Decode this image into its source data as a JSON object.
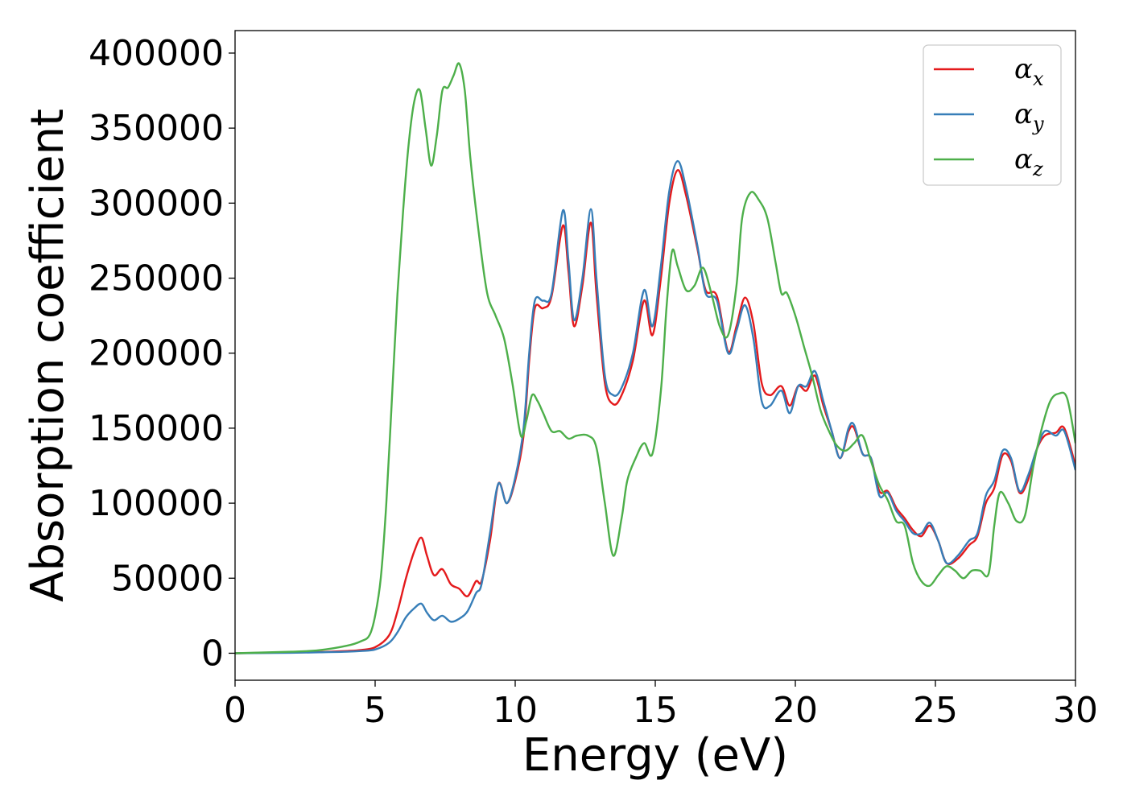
{
  "chart_data": {
    "type": "line",
    "xlabel": "Energy (eV)",
    "ylabel": "Absorption coefficient",
    "xlim": [
      0,
      30
    ],
    "ylim": [
      -18000,
      415000
    ],
    "xticks": [
      0,
      5,
      10,
      15,
      20,
      25,
      30
    ],
    "yticks": [
      0,
      50000,
      100000,
      150000,
      200000,
      250000,
      300000,
      350000,
      400000
    ],
    "grid": false,
    "legend": "top-right",
    "series": [
      {
        "name": "α",
        "subscript": "x",
        "color": "#e41a1c",
        "points": [
          [
            0,
            0
          ],
          [
            2,
            500
          ],
          [
            3,
            800
          ],
          [
            4,
            1500
          ],
          [
            4.5,
            2200
          ],
          [
            5,
            4000
          ],
          [
            5.5,
            12000
          ],
          [
            5.8,
            28000
          ],
          [
            6.1,
            50000
          ],
          [
            6.4,
            68000
          ],
          [
            6.65,
            77000
          ],
          [
            6.85,
            65000
          ],
          [
            7.1,
            52000
          ],
          [
            7.4,
            56000
          ],
          [
            7.7,
            46000
          ],
          [
            8.0,
            43000
          ],
          [
            8.3,
            38000
          ],
          [
            8.6,
            48000
          ],
          [
            8.8,
            48000
          ],
          [
            9.1,
            75000
          ],
          [
            9.4,
            113000
          ],
          [
            9.7,
            100000
          ],
          [
            10.0,
            115000
          ],
          [
            10.3,
            145000
          ],
          [
            10.5,
            195000
          ],
          [
            10.7,
            230000
          ],
          [
            11.0,
            230000
          ],
          [
            11.3,
            238000
          ],
          [
            11.7,
            285000
          ],
          [
            11.9,
            255000
          ],
          [
            12.1,
            218000
          ],
          [
            12.4,
            245000
          ],
          [
            12.7,
            287000
          ],
          [
            12.9,
            240000
          ],
          [
            13.2,
            180000
          ],
          [
            13.5,
            166000
          ],
          [
            13.8,
            172000
          ],
          [
            14.2,
            195000
          ],
          [
            14.6,
            235000
          ],
          [
            14.9,
            212000
          ],
          [
            15.2,
            250000
          ],
          [
            15.5,
            300000
          ],
          [
            15.8,
            322000
          ],
          [
            16.1,
            305000
          ],
          [
            16.5,
            270000
          ],
          [
            16.8,
            242000
          ],
          [
            17.2,
            238000
          ],
          [
            17.6,
            201000
          ],
          [
            17.9,
            218000
          ],
          [
            18.2,
            237000
          ],
          [
            18.5,
            220000
          ],
          [
            18.8,
            180000
          ],
          [
            19.1,
            172000
          ],
          [
            19.5,
            178000
          ],
          [
            19.8,
            165000
          ],
          [
            20.1,
            178000
          ],
          [
            20.4,
            175000
          ],
          [
            20.7,
            185000
          ],
          [
            21.0,
            165000
          ],
          [
            21.3,
            148000
          ],
          [
            21.6,
            130000
          ],
          [
            21.9,
            148000
          ],
          [
            22.1,
            150000
          ],
          [
            22.4,
            133000
          ],
          [
            22.7,
            130000
          ],
          [
            23.0,
            108000
          ],
          [
            23.3,
            108000
          ],
          [
            23.6,
            97000
          ],
          [
            23.9,
            90000
          ],
          [
            24.2,
            82000
          ],
          [
            24.5,
            78000
          ],
          [
            24.8,
            85000
          ],
          [
            25.1,
            75000
          ],
          [
            25.4,
            60000
          ],
          [
            25.8,
            63000
          ],
          [
            26.2,
            72000
          ],
          [
            26.5,
            78000
          ],
          [
            26.8,
            100000
          ],
          [
            27.1,
            110000
          ],
          [
            27.4,
            132000
          ],
          [
            27.7,
            128000
          ],
          [
            28.0,
            107000
          ],
          [
            28.3,
            115000
          ],
          [
            28.6,
            135000
          ],
          [
            28.9,
            145000
          ],
          [
            29.3,
            147000
          ],
          [
            29.6,
            150000
          ],
          [
            30,
            125000
          ]
        ]
      },
      {
        "name": "α",
        "subscript": "y",
        "color": "#377eb8",
        "points": [
          [
            0,
            0
          ],
          [
            2,
            300
          ],
          [
            3,
            600
          ],
          [
            4,
            1000
          ],
          [
            4.5,
            1500
          ],
          [
            5,
            2500
          ],
          [
            5.5,
            7000
          ],
          [
            5.8,
            14000
          ],
          [
            6.1,
            24000
          ],
          [
            6.4,
            30000
          ],
          [
            6.65,
            33000
          ],
          [
            6.85,
            27000
          ],
          [
            7.1,
            22000
          ],
          [
            7.4,
            25000
          ],
          [
            7.7,
            21000
          ],
          [
            8.0,
            23000
          ],
          [
            8.3,
            28000
          ],
          [
            8.6,
            40000
          ],
          [
            8.8,
            46000
          ],
          [
            9.1,
            80000
          ],
          [
            9.4,
            113000
          ],
          [
            9.7,
            100000
          ],
          [
            10.0,
            117000
          ],
          [
            10.3,
            150000
          ],
          [
            10.5,
            200000
          ],
          [
            10.7,
            235000
          ],
          [
            11.0,
            235000
          ],
          [
            11.3,
            240000
          ],
          [
            11.7,
            295000
          ],
          [
            11.9,
            262000
          ],
          [
            12.1,
            222000
          ],
          [
            12.4,
            250000
          ],
          [
            12.7,
            296000
          ],
          [
            12.9,
            250000
          ],
          [
            13.2,
            185000
          ],
          [
            13.5,
            172000
          ],
          [
            13.8,
            177000
          ],
          [
            14.2,
            200000
          ],
          [
            14.6,
            242000
          ],
          [
            14.9,
            218000
          ],
          [
            15.2,
            258000
          ],
          [
            15.5,
            308000
          ],
          [
            15.8,
            328000
          ],
          [
            16.1,
            310000
          ],
          [
            16.5,
            272000
          ],
          [
            16.8,
            240000
          ],
          [
            17.2,
            235000
          ],
          [
            17.6,
            200000
          ],
          [
            17.9,
            215000
          ],
          [
            18.2,
            232000
          ],
          [
            18.5,
            210000
          ],
          [
            18.8,
            168000
          ],
          [
            19.1,
            165000
          ],
          [
            19.5,
            175000
          ],
          [
            19.8,
            160000
          ],
          [
            20.1,
            178000
          ],
          [
            20.4,
            178000
          ],
          [
            20.7,
            188000
          ],
          [
            21.0,
            168000
          ],
          [
            21.3,
            148000
          ],
          [
            21.6,
            130000
          ],
          [
            21.9,
            150000
          ],
          [
            22.1,
            152000
          ],
          [
            22.4,
            133000
          ],
          [
            22.7,
            130000
          ],
          [
            23.0,
            105000
          ],
          [
            23.3,
            107000
          ],
          [
            23.6,
            95000
          ],
          [
            23.9,
            88000
          ],
          [
            24.2,
            80000
          ],
          [
            24.5,
            80000
          ],
          [
            24.8,
            87000
          ],
          [
            25.1,
            75000
          ],
          [
            25.4,
            60000
          ],
          [
            25.8,
            65000
          ],
          [
            26.2,
            75000
          ],
          [
            26.5,
            80000
          ],
          [
            26.8,
            105000
          ],
          [
            27.1,
            115000
          ],
          [
            27.4,
            135000
          ],
          [
            27.7,
            130000
          ],
          [
            28.0,
            108000
          ],
          [
            28.3,
            118000
          ],
          [
            28.6,
            135000
          ],
          [
            28.9,
            148000
          ],
          [
            29.3,
            145000
          ],
          [
            29.6,
            148000
          ],
          [
            30,
            122000
          ]
        ]
      },
      {
        "name": "α",
        "subscript": "z",
        "color": "#4daf4a",
        "points": [
          [
            0,
            0
          ],
          [
            2,
            1000
          ],
          [
            3,
            2000
          ],
          [
            4,
            5000
          ],
          [
            4.5,
            8000
          ],
          [
            4.8,
            12000
          ],
          [
            5.0,
            25000
          ],
          [
            5.2,
            50000
          ],
          [
            5.4,
            100000
          ],
          [
            5.6,
            170000
          ],
          [
            5.8,
            240000
          ],
          [
            6.0,
            295000
          ],
          [
            6.2,
            340000
          ],
          [
            6.4,
            368000
          ],
          [
            6.6,
            375000
          ],
          [
            6.8,
            350000
          ],
          [
            7.0,
            325000
          ],
          [
            7.2,
            345000
          ],
          [
            7.4,
            375000
          ],
          [
            7.6,
            377000
          ],
          [
            7.8,
            385000
          ],
          [
            8.0,
            393000
          ],
          [
            8.2,
            375000
          ],
          [
            8.4,
            330000
          ],
          [
            8.7,
            280000
          ],
          [
            9.0,
            240000
          ],
          [
            9.3,
            225000
          ],
          [
            9.6,
            210000
          ],
          [
            9.9,
            180000
          ],
          [
            10.2,
            145000
          ],
          [
            10.4,
            155000
          ],
          [
            10.6,
            172000
          ],
          [
            10.8,
            168000
          ],
          [
            11.0,
            160000
          ],
          [
            11.3,
            148000
          ],
          [
            11.6,
            148000
          ],
          [
            11.9,
            143000
          ],
          [
            12.2,
            145000
          ],
          [
            12.6,
            145000
          ],
          [
            12.9,
            137000
          ],
          [
            13.2,
            100000
          ],
          [
            13.5,
            65000
          ],
          [
            13.8,
            90000
          ],
          [
            14.0,
            115000
          ],
          [
            14.3,
            130000
          ],
          [
            14.6,
            140000
          ],
          [
            14.9,
            133000
          ],
          [
            15.2,
            175000
          ],
          [
            15.4,
            230000
          ],
          [
            15.6,
            268000
          ],
          [
            15.8,
            258000
          ],
          [
            16.1,
            242000
          ],
          [
            16.4,
            245000
          ],
          [
            16.7,
            257000
          ],
          [
            17.0,
            240000
          ],
          [
            17.3,
            218000
          ],
          [
            17.6,
            212000
          ],
          [
            17.9,
            245000
          ],
          [
            18.1,
            290000
          ],
          [
            18.4,
            307000
          ],
          [
            18.7,
            302000
          ],
          [
            19.0,
            290000
          ],
          [
            19.3,
            260000
          ],
          [
            19.5,
            240000
          ],
          [
            19.7,
            240000
          ],
          [
            20.0,
            225000
          ],
          [
            20.3,
            205000
          ],
          [
            20.6,
            185000
          ],
          [
            20.9,
            162000
          ],
          [
            21.2,
            148000
          ],
          [
            21.5,
            138000
          ],
          [
            21.8,
            135000
          ],
          [
            22.1,
            140000
          ],
          [
            22.4,
            145000
          ],
          [
            22.7,
            128000
          ],
          [
            23.0,
            112000
          ],
          [
            23.3,
            102000
          ],
          [
            23.6,
            88000
          ],
          [
            23.9,
            85000
          ],
          [
            24.2,
            60000
          ],
          [
            24.5,
            48000
          ],
          [
            24.8,
            45000
          ],
          [
            25.1,
            52000
          ],
          [
            25.4,
            58000
          ],
          [
            25.7,
            55000
          ],
          [
            26.0,
            50000
          ],
          [
            26.3,
            55000
          ],
          [
            26.6,
            55000
          ],
          [
            26.9,
            53000
          ],
          [
            27.1,
            85000
          ],
          [
            27.3,
            107000
          ],
          [
            27.6,
            100000
          ],
          [
            27.9,
            88000
          ],
          [
            28.2,
            92000
          ],
          [
            28.5,
            125000
          ],
          [
            28.8,
            150000
          ],
          [
            29.1,
            168000
          ],
          [
            29.4,
            173000
          ],
          [
            29.7,
            170000
          ],
          [
            30,
            140000
          ]
        ]
      }
    ]
  }
}
